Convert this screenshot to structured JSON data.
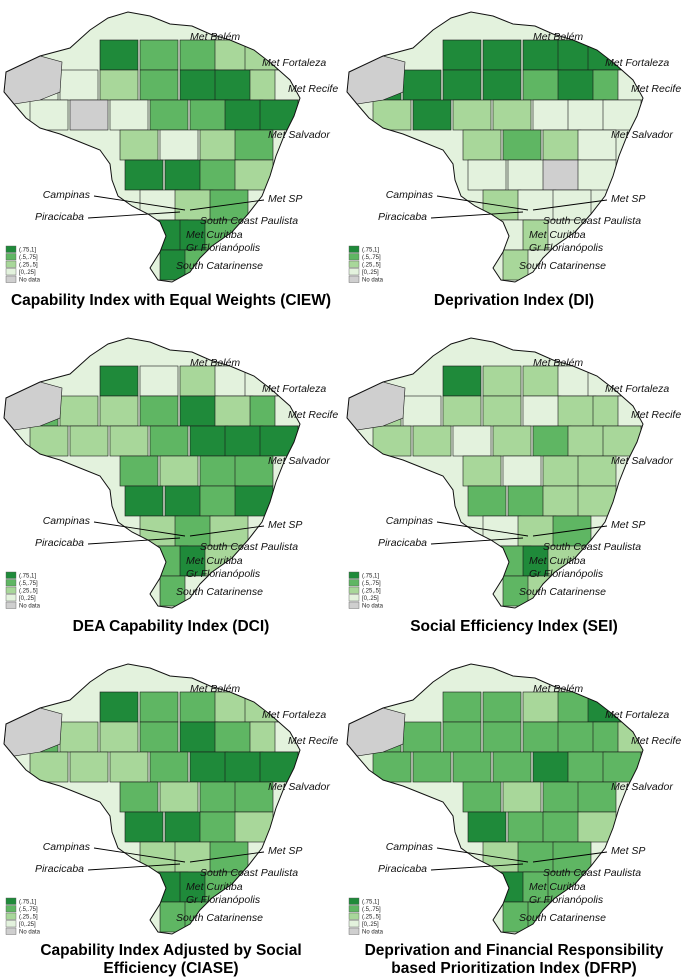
{
  "legend": {
    "bins": [
      {
        "label": "(.75,1]",
        "color": "#1f8a3a"
      },
      {
        "label": "(.5,.75]",
        "color": "#5fb663"
      },
      {
        "label": "(.25,.5]",
        "color": "#a8d79a"
      },
      {
        "label": "[0,.25]",
        "color": "#e3f2dd"
      },
      {
        "label": "No data",
        "color": "#cfcfcf"
      }
    ]
  },
  "locations": [
    "Met Belém",
    "Met Fortaleza",
    "Met Recife",
    "Met Salvador",
    "Campinas",
    "Met SP",
    "Piracicaba",
    "South Coast Paulista",
    "Met Curitiba",
    "Gr Florianópolis",
    "South Catarinense"
  ],
  "panels": [
    {
      "title_lines": [
        "Capability Index with Equal Weights (CIEW)"
      ],
      "shade": [
        0,
        1,
        1,
        2,
        2,
        3,
        3,
        2,
        1,
        0,
        0,
        2,
        3,
        3,
        4,
        3,
        1,
        1,
        0,
        0,
        2,
        3,
        2,
        1,
        0,
        0,
        1,
        2,
        3,
        2,
        1,
        0,
        0,
        1,
        0,
        1
      ]
    },
    {
      "title_lines": [
        "Deprivation Index (DI)"
      ],
      "shade": [
        0,
        0,
        0,
        0,
        0,
        0,
        0,
        0,
        0,
        1,
        0,
        1,
        3,
        2,
        0,
        2,
        2,
        3,
        3,
        3,
        2,
        1,
        2,
        3,
        3,
        3,
        4,
        3,
        2,
        3,
        3,
        3,
        2,
        3,
        2,
        3
      ]
    },
    {
      "title_lines": [
        "DEA Capability Index (DCI)"
      ],
      "shade": [
        0,
        3,
        2,
        3,
        3,
        1,
        2,
        2,
        1,
        0,
        2,
        1,
        3,
        2,
        2,
        2,
        1,
        0,
        0,
        0,
        1,
        2,
        1,
        1,
        0,
        0,
        1,
        0,
        2,
        1,
        2,
        1,
        0,
        2,
        1,
        3
      ]
    },
    {
      "title_lines": [
        "Social Efficiency Index (SEI)"
      ],
      "shade": [
        0,
        2,
        2,
        3,
        3,
        2,
        3,
        2,
        2,
        3,
        2,
        2,
        3,
        2,
        2,
        3,
        2,
        1,
        2,
        2,
        2,
        3,
        2,
        2,
        1,
        1,
        2,
        2,
        3,
        2,
        1,
        1,
        0,
        2,
        1,
        2
      ]
    },
    {
      "title_lines": [
        "Capability Index Adjusted by Social",
        "Efficiency (CIASE)"
      ],
      "shade": [
        0,
        1,
        1,
        2,
        2,
        1,
        2,
        2,
        1,
        0,
        1,
        2,
        3,
        2,
        2,
        2,
        1,
        0,
        0,
        0,
        1,
        2,
        1,
        1,
        0,
        0,
        1,
        2,
        2,
        2,
        1,
        0,
        0,
        1,
        1,
        1
      ]
    },
    {
      "title_lines": [
        "Deprivation and Financial Responsibility",
        "based Prioritization Index (DFRP)"
      ],
      "shade": [
        1,
        1,
        2,
        1,
        0,
        1,
        1,
        1,
        1,
        1,
        1,
        1,
        2,
        1,
        1,
        1,
        1,
        0,
        1,
        1,
        1,
        2,
        1,
        1,
        0,
        1,
        1,
        2,
        2,
        1,
        1,
        0,
        1,
        1,
        1,
        1
      ]
    }
  ]
}
